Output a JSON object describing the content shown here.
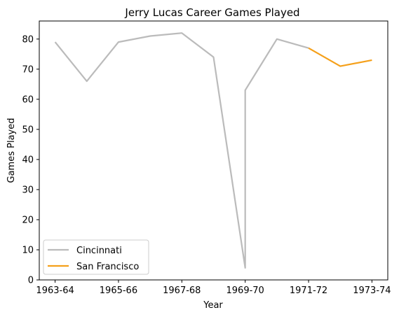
{
  "chart_data": {
    "type": "line",
    "title": "Jerry Lucas Career Games Played",
    "xlabel": "Year",
    "ylabel": "Games Played",
    "x_ticks": [
      "1963-64",
      "1965-66",
      "1967-68",
      "1969-70",
      "1971-72",
      "1973-74"
    ],
    "x_tick_positions": [
      0,
      2,
      4,
      6,
      8,
      10
    ],
    "xlim": [
      -0.5,
      10.5
    ],
    "ylim": [
      0,
      86
    ],
    "y_ticks": [
      0,
      10,
      20,
      30,
      40,
      50,
      60,
      70,
      80
    ],
    "grid": false,
    "legend_placement": "lower-left",
    "series": [
      {
        "name": "Cincinnati",
        "color": "#bbbbbb",
        "x": [
          0,
          1,
          2,
          3,
          4,
          5,
          6,
          6,
          7,
          8
        ],
        "y": [
          79,
          66,
          79,
          81,
          82,
          74,
          4,
          63,
          80,
          77
        ]
      },
      {
        "name": "San Francisco",
        "color": "#f5a01a",
        "x": [
          8,
          9,
          10
        ],
        "y": [
          77,
          71,
          73
        ]
      }
    ]
  }
}
